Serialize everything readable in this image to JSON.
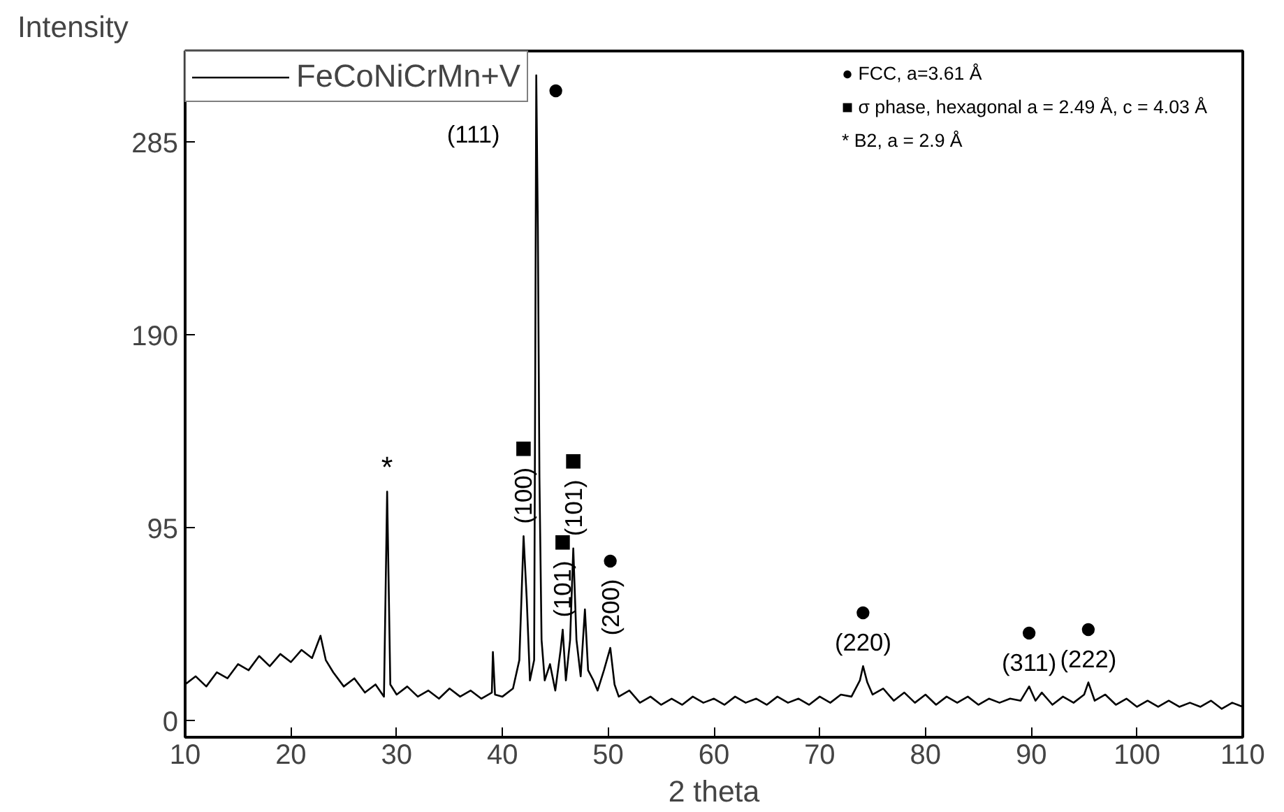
{
  "chart_data": {
    "type": "line",
    "xlabel": "2 theta",
    "ylabel": "Intensity",
    "x": [
      10,
      11,
      12,
      13,
      14,
      15,
      16,
      17,
      18,
      19,
      20,
      21,
      22,
      22.8,
      23.3,
      24,
      25,
      26,
      27,
      28,
      28.8,
      29.1,
      29.4,
      30,
      31,
      32,
      33,
      34,
      35,
      36,
      37,
      38,
      39,
      39.1,
      39.3,
      40,
      41,
      41.6,
      42.0,
      42.3,
      42.6,
      43.0,
      43.1,
      43.2,
      43.35,
      43.5,
      43.7,
      44,
      44.5,
      45,
      45.5,
      45.7,
      46,
      46.4,
      46.7,
      47,
      47.4,
      47.8,
      48.1,
      48.6,
      49,
      49.6,
      50.2,
      50.6,
      51,
      52,
      53,
      54,
      55,
      56,
      57,
      58,
      59,
      60,
      61,
      62,
      63,
      64,
      65,
      66,
      67,
      68,
      69,
      70,
      71,
      72,
      73,
      73.8,
      74.1,
      74.5,
      75,
      76,
      77,
      78,
      79,
      80,
      81,
      82,
      83,
      84,
      85,
      86,
      87,
      88,
      89,
      89.8,
      90.4,
      91,
      92,
      93,
      94,
      95,
      95.4,
      96,
      97,
      98,
      99,
      100,
      101,
      102,
      103,
      104,
      105,
      106,
      107,
      108,
      109,
      110
    ],
    "series": [
      {
        "name": "FeCoNiCrMn+V",
        "color": "#000000",
        "values": [
          18,
          22,
          17,
          24,
          21,
          28,
          25,
          32,
          27,
          33,
          29,
          35,
          31,
          42,
          30,
          24,
          17,
          21,
          14,
          18,
          12,
          113,
          18,
          13,
          17,
          12,
          15,
          11,
          16,
          12,
          15,
          11,
          14,
          34,
          13,
          12,
          16,
          30,
          91,
          60,
          20,
          30,
          170,
          318,
          243,
          120,
          40,
          20,
          28,
          15,
          35,
          45,
          20,
          40,
          85,
          40,
          22,
          55,
          25,
          20,
          15,
          25,
          36,
          18,
          12,
          15,
          9,
          12,
          8,
          11,
          8,
          12,
          9,
          11,
          8,
          12,
          9,
          11,
          8,
          12,
          9,
          11,
          8,
          12,
          9,
          13,
          12,
          20,
          27,
          19,
          13,
          16,
          10,
          14,
          9,
          13,
          8,
          12,
          9,
          12,
          8,
          11,
          9,
          11,
          10,
          17,
          10,
          14,
          8,
          12,
          9,
          13,
          19,
          10,
          13,
          8,
          11,
          7,
          10,
          7,
          10,
          7,
          9,
          7,
          10,
          6,
          9,
          7
        ]
      }
    ],
    "xlim": [
      10,
      110
    ],
    "ylim": [
      -8,
      330
    ],
    "xticks": [
      10,
      20,
      30,
      40,
      50,
      60,
      70,
      80,
      90,
      100,
      110
    ],
    "yticks": [
      0,
      95,
      190,
      285
    ],
    "grid": false,
    "legend": "top left",
    "line_style": "solid",
    "marker": "none",
    "annotations": [
      {
        "text": "●",
        "x": 43.2,
        "y": 318
      },
      {
        "text": "(111)",
        "x": 43.2,
        "y": 318
      },
      {
        "text": "*",
        "x": 29.1,
        "y": 113
      },
      {
        "text": "(100)",
        "x": 42.0,
        "y": 91
      },
      {
        "text": "■",
        "x": 42.0,
        "y": 91
      },
      {
        "text": "(101)",
        "x": 45.7,
        "y": 45
      },
      {
        "text": "■",
        "x": 45.7,
        "y": 45
      },
      {
        "text": "(101)",
        "x": 46.7,
        "y": 85
      },
      {
        "text": "■",
        "x": 46.7,
        "y": 85
      },
      {
        "text": "(200)",
        "x": 50.2,
        "y": 36
      },
      {
        "text": "●",
        "x": 50.2,
        "y": 36
      },
      {
        "text": "(220)",
        "x": 74.1,
        "y": 27
      },
      {
        "text": "●",
        "x": 74.1,
        "y": 27
      },
      {
        "text": "(311)",
        "x": 89.8,
        "y": 17
      },
      {
        "text": "●",
        "x": 89.8,
        "y": 17
      },
      {
        "text": "(222)",
        "x": 95.4,
        "y": 19
      },
      {
        "text": "●",
        "x": 95.4,
        "y": 19
      },
      "● FCC, a=3.61 Å",
      "■ σ phase, hexagonal a = 2.49 Å, c = 4.03 Å",
      "* B2, a = 2.9 Å"
    ]
  }
}
